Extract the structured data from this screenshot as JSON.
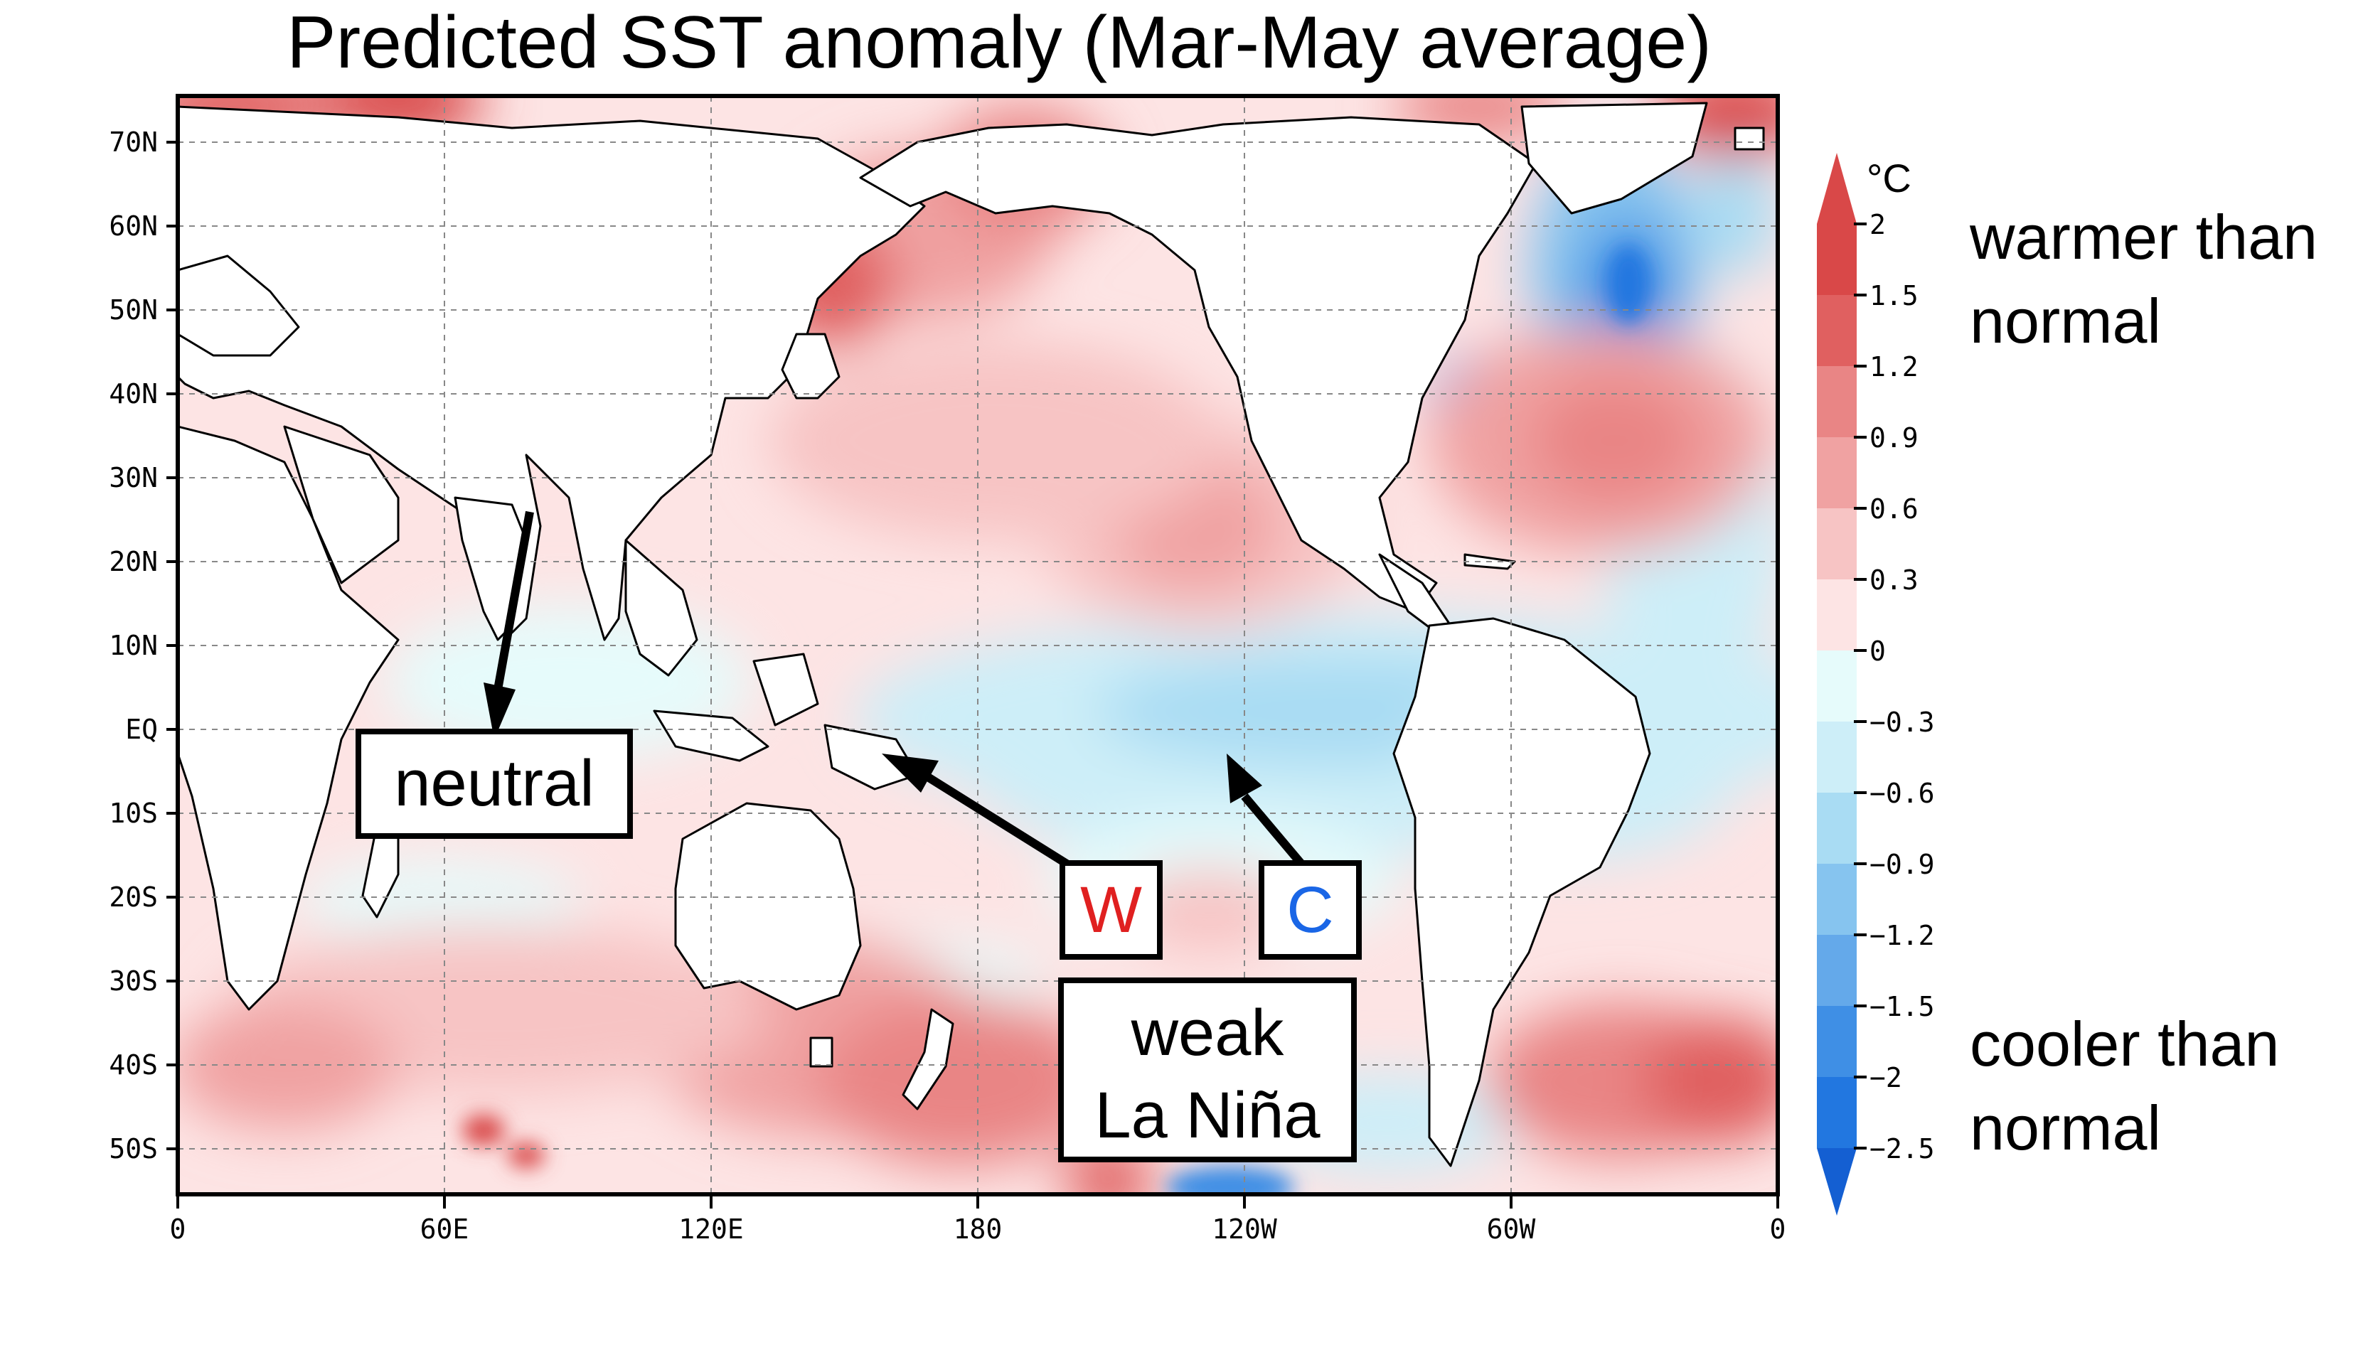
{
  "title": "Predicted SST anomaly (Mar-May average)",
  "map": {
    "lon_labels": [
      "0",
      "60E",
      "120E",
      "180",
      "120W",
      "60W",
      "0"
    ],
    "lat_labels": [
      "70N",
      "60N",
      "50N",
      "40N",
      "30N",
      "20N",
      "10N",
      "EQ",
      "10S",
      "20S",
      "30S",
      "40S",
      "50S"
    ]
  },
  "colorbar": {
    "unit": "°C",
    "ticks": [
      "2",
      "1.5",
      "1.2",
      "0.9",
      "0.6",
      "0.3",
      "0",
      "−0.3",
      "−0.6",
      "−0.9",
      "−1.2",
      "−1.5",
      "−2",
      "−2.5"
    ],
    "colors": [
      "#d94848",
      "#e06060",
      "#e98585",
      "#f0a2a2",
      "#f7c4c4",
      "#fde4e4",
      "#e6fbfb",
      "#cdeef8",
      "#a9dcf3",
      "#86c4ef",
      "#64a9ea",
      "#3f8fe5",
      "#2277e0",
      "#145fd2"
    ]
  },
  "annotations": {
    "neutral": "neutral",
    "w": "W",
    "c": "C",
    "la_nina_line1": "weak",
    "la_nina_line2": "La Niña",
    "warmer": "warmer than\nnormal",
    "cooler": "cooler than\nnormal"
  },
  "colors": {
    "warm_label": "#e02020",
    "cool_label": "#1a66e6",
    "land": "#ffffff"
  }
}
